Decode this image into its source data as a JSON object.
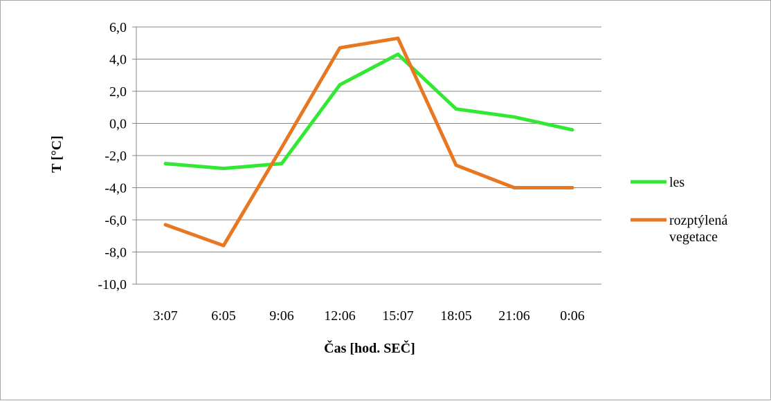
{
  "chart_data": {
    "type": "line",
    "title": "",
    "xlabel": "Čas [hod. SEČ]",
    "ylabel": "T [°C]",
    "categories": [
      "3:07",
      "6:05",
      "9:06",
      "12:06",
      "15:07",
      "18:05",
      "21:06",
      "0:06"
    ],
    "ylim": [
      -10,
      6
    ],
    "ytick_values": [
      6,
      4,
      2,
      0,
      -2,
      -4,
      -6,
      -8,
      -10
    ],
    "ytick_labels": [
      "6,0",
      "4,0",
      "2,0",
      "0,0",
      "-2,0",
      "-4,0",
      "-6,0",
      "-8,0",
      "-10,0"
    ],
    "grid": true,
    "legend_position": "right",
    "series": [
      {
        "name": "les",
        "color": "#33e833",
        "values": [
          -2.5,
          -2.8,
          -2.5,
          2.4,
          4.3,
          0.9,
          0.4,
          -0.4
        ]
      },
      {
        "name": "rozptýlená vegetace",
        "legend_lines": [
          "rozptýlená",
          "vegetace"
        ],
        "color": "#e87722",
        "values": [
          -6.3,
          -7.6,
          -1.5,
          4.7,
          5.3,
          -2.6,
          -4.0,
          -4.0
        ]
      }
    ]
  }
}
